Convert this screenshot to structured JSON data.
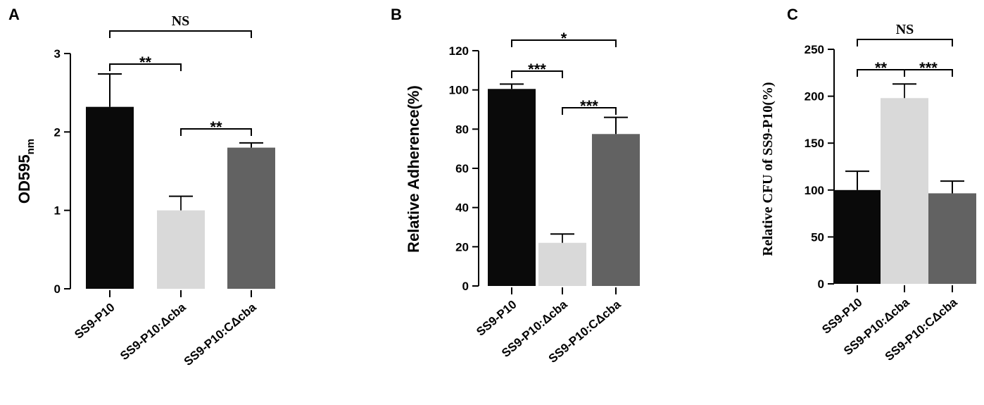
{
  "chart_data": [
    {
      "panel": "A",
      "type": "bar",
      "ylabel": "OD595",
      "ylabel_sub": "nm",
      "ylim": [
        0,
        3
      ],
      "yticks": [
        0,
        1,
        2,
        3
      ],
      "categories": [
        "SS9-P10",
        "SS9-P10:Δcba",
        "SS9-P10:CΔcba"
      ],
      "values": [
        2.32,
        1.0,
        1.8
      ],
      "errors": [
        0.42,
        0.18,
        0.06
      ],
      "bar_colors": [
        "#0a0a0a",
        "#d9d9d9",
        "#626262"
      ],
      "significance": [
        {
          "from": 0,
          "to": 1,
          "label": "**"
        },
        {
          "from": 1,
          "to": 2,
          "label": "**"
        },
        {
          "from": 0,
          "to": 2,
          "label": "NS"
        }
      ]
    },
    {
      "panel": "B",
      "type": "bar",
      "ylabel": "Relative Adherence(%)",
      "ylim": [
        0,
        120
      ],
      "yticks": [
        0,
        20,
        40,
        60,
        80,
        100,
        120
      ],
      "categories": [
        "SS9-P10",
        "SS9-P10:Δcba",
        "SS9-P10:CΔcba"
      ],
      "values": [
        100.5,
        22,
        77.5
      ],
      "errors": [
        2.5,
        4.5,
        8.5
      ],
      "bar_colors": [
        "#0a0a0a",
        "#d9d9d9",
        "#626262"
      ],
      "significance": [
        {
          "from": 0,
          "to": 1,
          "label": "***"
        },
        {
          "from": 1,
          "to": 2,
          "label": "***"
        },
        {
          "from": 0,
          "to": 2,
          "label": "*"
        }
      ]
    },
    {
      "panel": "C",
      "type": "bar",
      "ylabel": "Relative CFU of SS9-P10(%)",
      "ylim": [
        0,
        250
      ],
      "yticks": [
        0,
        50,
        100,
        150,
        200,
        250
      ],
      "categories": [
        "SS9-P10",
        "SS9-P10:Δcba",
        "SS9-P10:CΔcba"
      ],
      "values": [
        100,
        198,
        96.5
      ],
      "errors": [
        20,
        15,
        13
      ],
      "bar_colors": [
        "#0a0a0a",
        "#d9d9d9",
        "#626262"
      ],
      "significance": [
        {
          "from": 0,
          "to": 1,
          "label": "**"
        },
        {
          "from": 1,
          "to": 2,
          "label": "***"
        },
        {
          "from": 0,
          "to": 2,
          "label": "NS"
        }
      ]
    }
  ]
}
